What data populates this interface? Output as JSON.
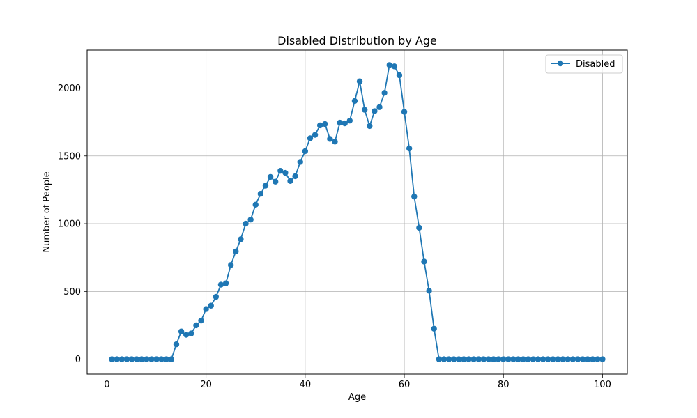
{
  "chart_data": {
    "type": "line",
    "title": "Disabled Distribution by Age",
    "xlabel": "Age",
    "ylabel": "Number of People",
    "xlim": [
      -4,
      105
    ],
    "ylim": [
      -110,
      2280
    ],
    "x_ticks": [
      0,
      20,
      40,
      60,
      80,
      100
    ],
    "y_ticks": [
      0,
      500,
      1000,
      1500,
      2000
    ],
    "grid": true,
    "legend_position": "top-right",
    "series": [
      {
        "name": "Disabled",
        "color": "#1f77b4",
        "marker": "circle",
        "x": [
          1,
          2,
          3,
          4,
          5,
          6,
          7,
          8,
          9,
          10,
          11,
          12,
          13,
          14,
          15,
          16,
          17,
          18,
          19,
          20,
          21,
          22,
          23,
          24,
          25,
          26,
          27,
          28,
          29,
          30,
          31,
          32,
          33,
          34,
          35,
          36,
          37,
          38,
          39,
          40,
          41,
          42,
          43,
          44,
          45,
          46,
          47,
          48,
          49,
          50,
          51,
          52,
          53,
          54,
          55,
          56,
          57,
          58,
          59,
          60,
          61,
          62,
          63,
          64,
          65,
          66,
          67,
          68,
          69,
          70,
          71,
          72,
          73,
          74,
          75,
          76,
          77,
          78,
          79,
          80,
          81,
          82,
          83,
          84,
          85,
          86,
          87,
          88,
          89,
          90,
          91,
          92,
          93,
          94,
          95,
          96,
          97,
          98,
          99,
          100
        ],
        "values": [
          0,
          0,
          0,
          0,
          0,
          0,
          0,
          0,
          0,
          0,
          0,
          0,
          0,
          110,
          205,
          180,
          190,
          250,
          285,
          370,
          395,
          460,
          550,
          560,
          695,
          795,
          885,
          1000,
          1030,
          1140,
          1220,
          1280,
          1345,
          1310,
          1390,
          1375,
          1315,
          1350,
          1455,
          1535,
          1630,
          1655,
          1725,
          1735,
          1625,
          1605,
          1745,
          1740,
          1760,
          1905,
          2050,
          1840,
          1720,
          1830,
          1860,
          1965,
          2170,
          2160,
          2095,
          1825,
          1555,
          1200,
          970,
          720,
          505,
          225,
          0,
          0,
          0,
          0,
          0,
          0,
          0,
          0,
          0,
          0,
          0,
          0,
          0,
          0,
          0,
          0,
          0,
          0,
          0,
          0,
          0,
          0,
          0,
          0,
          0,
          0,
          0,
          0,
          0,
          0,
          0,
          0,
          0,
          0
        ]
      }
    ]
  }
}
